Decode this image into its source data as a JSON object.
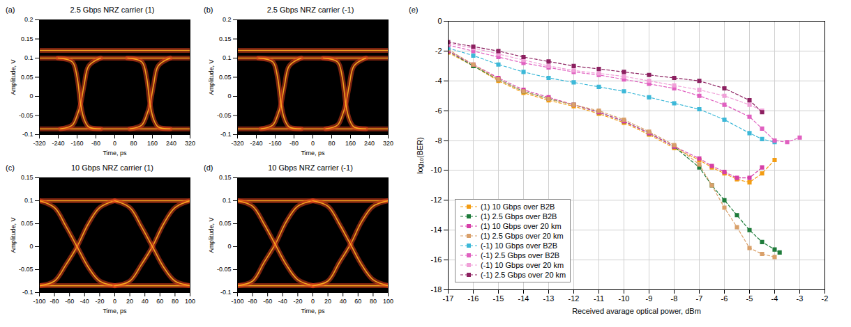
{
  "chart_data": [
    {
      "type": "line",
      "panel_label": "(a)",
      "title": "2.5 Gbps NRZ carrier (1)",
      "x_label": "Time, ps",
      "y_label": "Amplitude, V",
      "xlim": [
        -320,
        320
      ],
      "xticks": [
        -320,
        -240,
        -160,
        -80,
        0,
        80,
        160,
        240,
        320
      ],
      "ylim": [
        -0.1,
        0.2
      ],
      "yticks": [
        -0.1,
        -0.05,
        0,
        0.05,
        0.1,
        0.15,
        0.2
      ],
      "color": "#e0401c",
      "traces": [
        {
          "x": [
            -320,
            320
          ],
          "y": [
            -0.085,
            -0.085
          ]
        },
        {
          "x": [
            -320,
            320
          ],
          "y": [
            0.1,
            0.1
          ]
        },
        {
          "x": [
            -320,
            320
          ],
          "y": [
            0.12,
            0.12
          ]
        },
        {
          "x": [
            -230,
            -180,
            -160,
            -145,
            -130,
            -110,
            -60
          ],
          "y": [
            -0.085,
            -0.075,
            -0.05,
            -0.02,
            0.03,
            0.08,
            0.1
          ]
        },
        {
          "x": [
            -240,
            -180,
            -160,
            -145,
            -130,
            -110,
            -60
          ],
          "y": [
            0.1,
            0.09,
            0.05,
            -0.02,
            -0.06,
            -0.08,
            -0.085
          ]
        },
        {
          "x": [
            65,
            115,
            135,
            150,
            165,
            185,
            235
          ],
          "y": [
            -0.085,
            -0.075,
            -0.05,
            -0.02,
            0.03,
            0.08,
            0.1
          ]
        },
        {
          "x": [
            55,
            115,
            135,
            150,
            165,
            185,
            235
          ],
          "y": [
            0.1,
            0.09,
            0.05,
            -0.02,
            -0.06,
            -0.08,
            -0.085
          ]
        }
      ]
    },
    {
      "type": "line",
      "panel_label": "(b)",
      "title": "2.5 Gbps NRZ carrier (-1)",
      "x_label": "Time, ps",
      "y_label": "Amplitude, V",
      "xlim": [
        -320,
        320
      ],
      "xticks": [
        -320,
        -240,
        -160,
        -80,
        0,
        80,
        160,
        240,
        320
      ],
      "ylim": [
        -0.1,
        0.2
      ],
      "yticks": [
        -0.1,
        -0.05,
        0,
        0.05,
        0.1,
        0.15,
        0.2
      ],
      "color": "#e0401c",
      "traces": [
        {
          "x": [
            -320,
            320
          ],
          "y": [
            -0.085,
            -0.085
          ]
        },
        {
          "x": [
            -320,
            320
          ],
          "y": [
            0.1,
            0.1
          ]
        },
        {
          "x": [
            -320,
            320
          ],
          "y": [
            0.12,
            0.12
          ]
        },
        {
          "x": [
            -220,
            -170,
            -150,
            -135,
            -120,
            -100,
            -50
          ],
          "y": [
            -0.085,
            -0.075,
            -0.05,
            -0.02,
            0.03,
            0.08,
            0.1
          ]
        },
        {
          "x": [
            -230,
            -170,
            -150,
            -135,
            -120,
            -100,
            -50
          ],
          "y": [
            0.1,
            0.09,
            0.05,
            -0.02,
            -0.06,
            -0.08,
            -0.085
          ]
        },
        {
          "x": [
            55,
            105,
            125,
            140,
            155,
            175,
            225
          ],
          "y": [
            -0.085,
            -0.075,
            -0.05,
            -0.02,
            0.03,
            0.08,
            0.1
          ]
        },
        {
          "x": [
            45,
            105,
            125,
            140,
            155,
            175,
            225
          ],
          "y": [
            0.1,
            0.09,
            0.05,
            -0.02,
            -0.06,
            -0.08,
            -0.085
          ]
        }
      ]
    },
    {
      "type": "line",
      "panel_label": "(c)",
      "title": "10 Gbps NRZ carrier (1)",
      "x_label": "Time, ps",
      "y_label": "Amplitude, V",
      "xlim": [
        -100,
        100
      ],
      "xticks": [
        -100,
        -80,
        -60,
        -40,
        -20,
        0,
        20,
        40,
        60,
        80,
        100
      ],
      "ylim": [
        -0.1,
        0.15
      ],
      "yticks": [
        -0.1,
        -0.05,
        0,
        0.05,
        0.1,
        0.15
      ],
      "color": "#e0401c",
      "traces": [
        {
          "x": [
            -100,
            100
          ],
          "y": [
            -0.085,
            -0.085
          ]
        },
        {
          "x": [
            -100,
            100
          ],
          "y": [
            0.1,
            0.1
          ]
        },
        {
          "x": [
            -100,
            -80,
            -65,
            -50,
            -35,
            -20,
            0
          ],
          "y": [
            -0.085,
            -0.075,
            -0.04,
            0,
            0.05,
            0.085,
            0.1
          ]
        },
        {
          "x": [
            -100,
            -80,
            -65,
            -50,
            -35,
            -20,
            0
          ],
          "y": [
            0.1,
            0.085,
            0.045,
            0,
            -0.045,
            -0.075,
            -0.085
          ]
        },
        {
          "x": [
            0,
            20,
            35,
            50,
            65,
            80,
            100
          ],
          "y": [
            -0.085,
            -0.075,
            -0.04,
            0,
            0.05,
            0.085,
            0.1
          ]
        },
        {
          "x": [
            0,
            20,
            35,
            50,
            65,
            80,
            100
          ],
          "y": [
            0.1,
            0.085,
            0.045,
            0,
            -0.045,
            -0.075,
            -0.085
          ]
        }
      ]
    },
    {
      "type": "line",
      "panel_label": "(d)",
      "title": "10 Gbps NRZ carrier (-1)",
      "x_label": "Time, ps",
      "y_label": "Amplitude, V",
      "xlim": [
        -100,
        100
      ],
      "xticks": [
        -100,
        -80,
        -60,
        -40,
        -20,
        0,
        20,
        40,
        60,
        80,
        100
      ],
      "ylim": [
        -0.1,
        0.15
      ],
      "yticks": [
        -0.1,
        -0.05,
        0,
        0.05,
        0.1,
        0.15
      ],
      "color": "#e0401c",
      "traces": [
        {
          "x": [
            -100,
            100
          ],
          "y": [
            -0.085,
            -0.085
          ]
        },
        {
          "x": [
            -100,
            100
          ],
          "y": [
            0.1,
            0.1
          ]
        },
        {
          "x": [
            -100,
            -80,
            -65,
            -50,
            -35,
            -20,
            0
          ],
          "y": [
            -0.085,
            -0.075,
            -0.035,
            0.005,
            0.055,
            0.088,
            0.1
          ]
        },
        {
          "x": [
            -100,
            -80,
            -65,
            -50,
            -35,
            -20,
            0
          ],
          "y": [
            0.1,
            0.088,
            0.05,
            0.005,
            -0.04,
            -0.072,
            -0.085
          ]
        },
        {
          "x": [
            0,
            20,
            35,
            50,
            65,
            80,
            100
          ],
          "y": [
            -0.085,
            -0.075,
            -0.035,
            0.005,
            0.055,
            0.088,
            0.1
          ]
        },
        {
          "x": [
            0,
            20,
            35,
            50,
            65,
            80,
            100
          ],
          "y": [
            0.1,
            0.088,
            0.05,
            0.005,
            -0.04,
            -0.072,
            -0.085
          ]
        }
      ]
    },
    {
      "type": "line",
      "panel_label": "(e)",
      "x_label": "Received avarage optical power, dBm",
      "y_label": "log₁₀(BER)",
      "xlim": [
        -17,
        -2
      ],
      "xticks": [
        -17,
        -16,
        -15,
        -14,
        -13,
        -12,
        -11,
        -10,
        -9,
        -8,
        -7,
        -6,
        -5,
        -4,
        -3,
        -2
      ],
      "ylim": [
        -18,
        0
      ],
      "yticks": [
        -18,
        -16,
        -14,
        -12,
        -10,
        -8,
        -6,
        -4,
        -2,
        0
      ],
      "grid": true,
      "legend": "lower left",
      "marker": "square",
      "line_style": "dashed",
      "series": [
        {
          "name": "(1) 10 Gbps over B2B",
          "color": "#f39c12",
          "x": [
            -17,
            -16,
            -15,
            -14,
            -13,
            -12,
            -11,
            -10,
            -9,
            -8,
            -7,
            -6.5,
            -6,
            -5.5,
            -5,
            -4.5,
            -4
          ],
          "values": [
            -2.1,
            -3.0,
            -4.0,
            -4.8,
            -5.3,
            -5.7,
            -6.2,
            -6.8,
            -7.6,
            -8.5,
            -9.3,
            -9.8,
            -10.2,
            -10.6,
            -10.8,
            -10.2,
            -9.3
          ]
        },
        {
          "name": "(1) 2.5 Gbps over B2B",
          "color": "#1e7b3a",
          "x": [
            -17,
            -16,
            -15,
            -14,
            -13,
            -12,
            -11,
            -10,
            -9,
            -8,
            -7,
            -6.5,
            -6,
            -5.5,
            -5,
            -4.5,
            -4,
            -3.8
          ],
          "values": [
            -2.0,
            -3.0,
            -3.9,
            -4.7,
            -5.2,
            -5.6,
            -6.1,
            -6.7,
            -7.5,
            -8.4,
            -9.8,
            -11.0,
            -12.0,
            -13.0,
            -14.0,
            -14.8,
            -15.3,
            -15.5
          ]
        },
        {
          "name": "(1) 10 Gbps over 20 km",
          "color": "#d63fa8",
          "x": [
            -17,
            -16,
            -15,
            -14,
            -13,
            -12,
            -11,
            -10,
            -9,
            -8,
            -7,
            -6.5,
            -6,
            -5.5,
            -5,
            -4.5
          ],
          "values": [
            -2.0,
            -2.9,
            -3.8,
            -4.6,
            -5.1,
            -5.6,
            -6.1,
            -6.7,
            -7.5,
            -8.4,
            -9.2,
            -9.7,
            -10.1,
            -10.5,
            -10.5,
            -9.8
          ]
        },
        {
          "name": "(1) 2.5 Gbps over 20 km",
          "color": "#d9a06a",
          "x": [
            -17,
            -16,
            -15,
            -14,
            -13,
            -12,
            -11,
            -10,
            -9,
            -8,
            -7,
            -6.5,
            -6,
            -5.5,
            -5,
            -4.5,
            -4
          ],
          "values": [
            -1.9,
            -2.9,
            -3.9,
            -4.7,
            -5.2,
            -5.6,
            -6.0,
            -6.6,
            -7.4,
            -8.3,
            -9.6,
            -11.0,
            -12.5,
            -13.8,
            -15.2,
            -15.6,
            -15.8
          ]
        },
        {
          "name": "(-1) 10 Gbps over B2B",
          "color": "#3cb8d8",
          "x": [
            -17,
            -16,
            -15,
            -14,
            -13,
            -12,
            -11,
            -10,
            -9,
            -8,
            -7,
            -6,
            -5,
            -4.5,
            -4
          ],
          "values": [
            -1.8,
            -2.3,
            -2.9,
            -3.4,
            -3.8,
            -4.1,
            -4.4,
            -4.7,
            -5.1,
            -5.5,
            -5.9,
            -6.6,
            -7.5,
            -7.9,
            -8.1
          ]
        },
        {
          "name": "(-1) 2.5 Gbps over B2B",
          "color": "#e060c0",
          "x": [
            -17,
            -16,
            -15,
            -14,
            -13,
            -12,
            -11,
            -10,
            -9,
            -8,
            -7,
            -6,
            -5,
            -4.5,
            -4,
            -3.5,
            -3
          ],
          "values": [
            -1.6,
            -2.0,
            -2.4,
            -2.8,
            -3.1,
            -3.4,
            -3.6,
            -3.9,
            -4.2,
            -4.5,
            -5.0,
            -5.6,
            -6.4,
            -7.2,
            -8.0,
            -8.1,
            -7.8
          ]
        },
        {
          "name": "(-1) 10 Gbps over 20 km",
          "color": "#f0a0d8",
          "x": [
            -17,
            -16,
            -15,
            -14,
            -13,
            -12,
            -11,
            -10,
            -9,
            -8,
            -7,
            -6,
            -5,
            -4.5
          ],
          "values": [
            -1.5,
            -1.8,
            -2.2,
            -2.6,
            -3.0,
            -3.3,
            -3.5,
            -3.7,
            -4.0,
            -4.3,
            -4.6,
            -5.0,
            -5.6,
            -6.0
          ]
        },
        {
          "name": "(-1) 2.5 Gbps over 20 km",
          "color": "#8c2060",
          "x": [
            -17,
            -16,
            -15,
            -14,
            -13,
            -12,
            -11,
            -10,
            -9,
            -8,
            -7,
            -6,
            -5,
            -4.5
          ],
          "values": [
            -1.4,
            -1.7,
            -2.0,
            -2.4,
            -2.7,
            -3.0,
            -3.2,
            -3.4,
            -3.6,
            -3.8,
            -4.0,
            -4.5,
            -5.3,
            -6.1
          ]
        }
      ]
    }
  ]
}
